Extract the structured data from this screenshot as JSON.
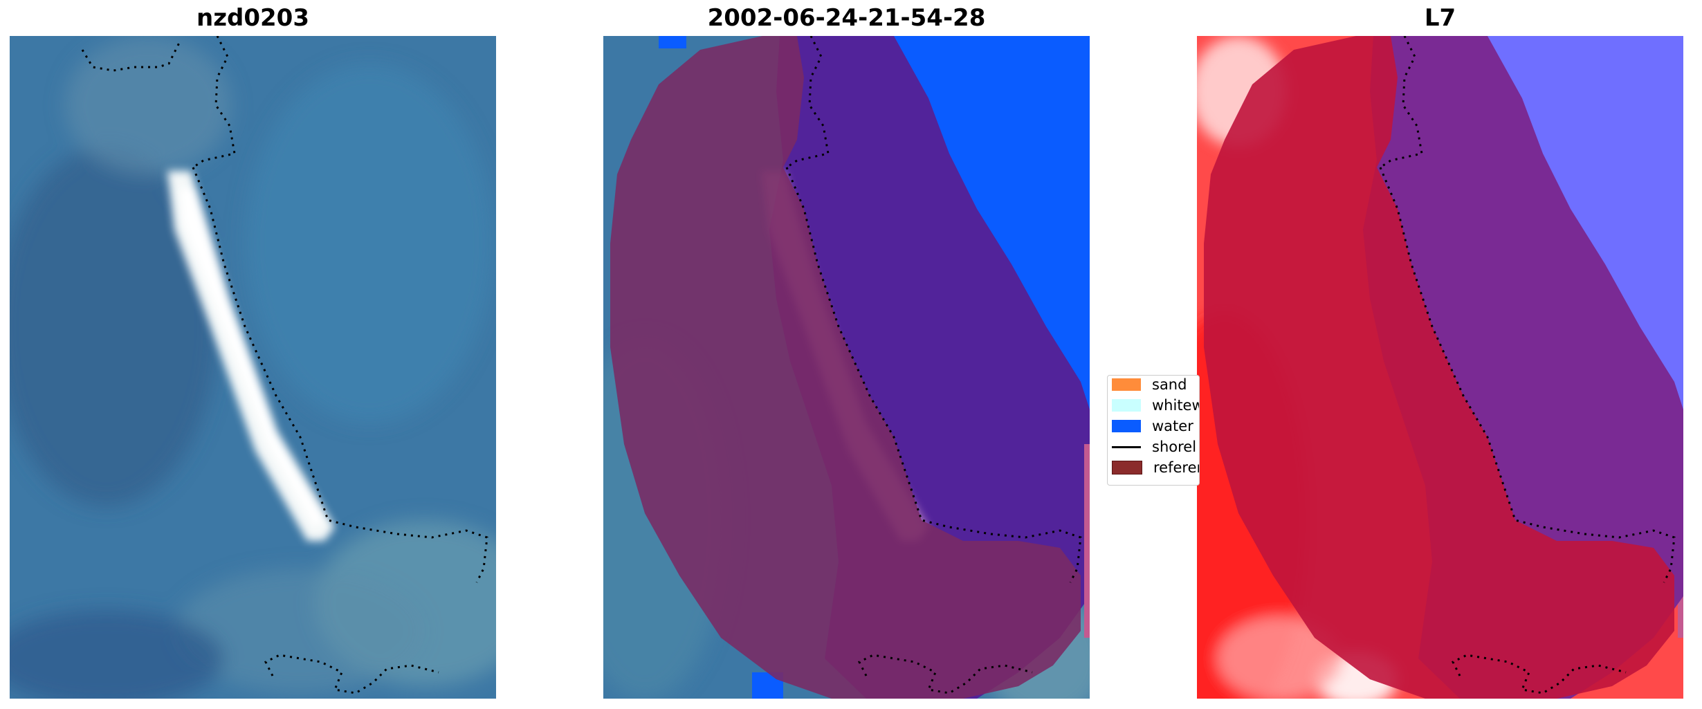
{
  "panels": [
    {
      "title": "nzd0203"
    },
    {
      "title": "2002-06-24-21-54-28"
    },
    {
      "title": "L7"
    }
  ],
  "legend": {
    "items": [
      {
        "label": "sand",
        "kind": "patch",
        "color": "#ff8c3a"
      },
      {
        "label": "whitew",
        "kind": "patch",
        "color": "#c9ffff"
      },
      {
        "label": "water",
        "kind": "patch",
        "color": "#0a5cff"
      },
      {
        "label": "shorel",
        "kind": "line",
        "color": "#000000"
      },
      {
        "label": "referen",
        "kind": "patch",
        "color": "#8b2b2b"
      }
    ]
  },
  "colors": {
    "satellite_base": "#3e78a6",
    "satellite_shade": "#2f5f8c",
    "beach_white": "#f2f6f6",
    "overlay_reference": "#7a2a64",
    "overlay_water_class": "#52239a",
    "water_class": "#0a5cff",
    "index_red": "#ff2a2a",
    "index_blue": "#6a6aff",
    "index_overlay_red": "#c0143c",
    "index_overlay_purple": "#7a2a94"
  }
}
